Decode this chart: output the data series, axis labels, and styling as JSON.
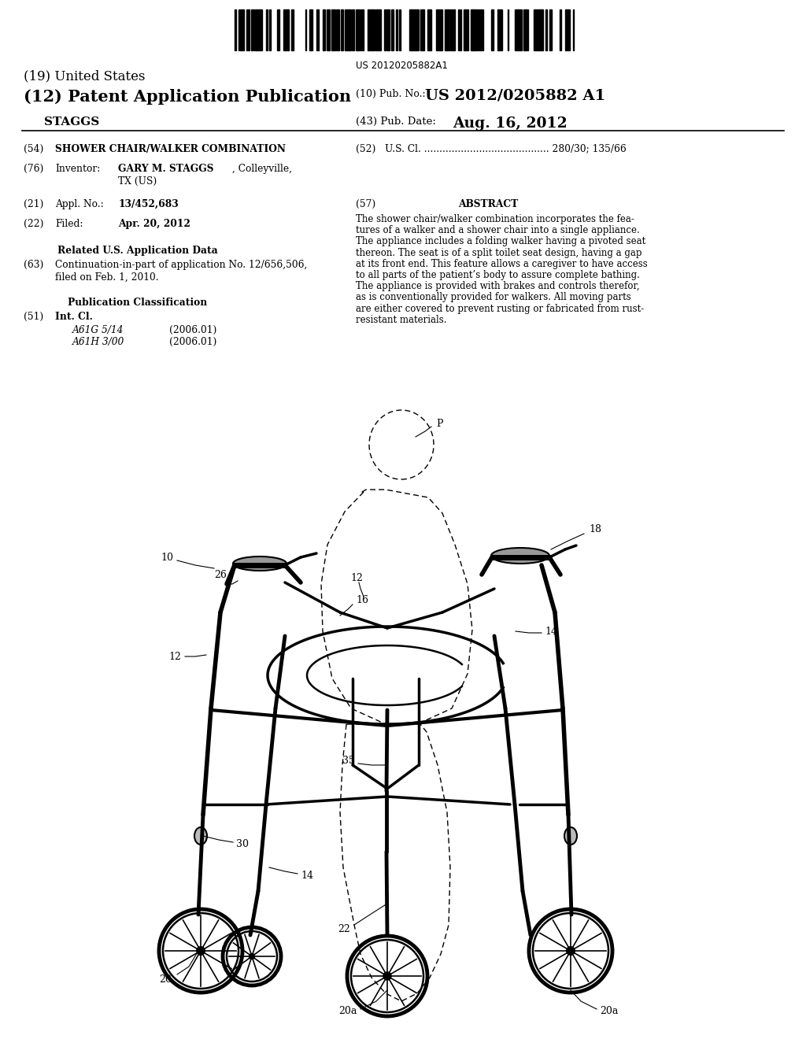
{
  "bg_color": "#ffffff",
  "barcode_text": "US 20120205882A1",
  "header_19": "(19) United States",
  "header_12": "(12) Patent Application Publication",
  "header_applicant": "STAGGS",
  "pub_no_label": "(10) Pub. No.:",
  "pub_no_value": "US 2012/0205882 A1",
  "pub_date_label": "(43) Pub. Date:",
  "pub_date_value": "Aug. 16, 2012",
  "s54_label": "(54)",
  "s54_title": "SHOWER CHAIR/WALKER COMBINATION",
  "s52_text": "(52)   U.S. Cl. ......................................... 280/30; 135/66",
  "s76_label": "(76)",
  "s76_key": "Inventor:",
  "s76_name": "GARY M. STAGGS",
  "s76_loc": ", Colleyville,",
  "s76_loc2": "TX (US)",
  "s21_label": "(21)",
  "s21_key": "Appl. No.:",
  "s21_val": "13/452,683",
  "s22_label": "(22)",
  "s22_key": "Filed:",
  "s22_val": "Apr. 20, 2012",
  "s57_label": "(57)",
  "s57_title": "ABSTRACT",
  "s57_lines": [
    "The shower chair/walker combination incorporates the fea-",
    "tures of a walker and a shower chair into a single appliance.",
    "The appliance includes a folding walker having a pivoted seat",
    "thereon. The seat is of a split toilet seat design, having a gap",
    "at its front end. This feature allows a caregiver to have access",
    "to all parts of the patient’s body to assure complete bathing.",
    "The appliance is provided with brakes and controls therefor,",
    "as is conventionally provided for walkers. All moving parts",
    "are either covered to prevent rusting or fabricated from rust-",
    "resistant materials."
  ],
  "related_title": "Related U.S. Application Data",
  "s63_label": "(63)",
  "s63_line1": "Continuation-in-part of application No. 12/656,506,",
  "s63_line2": "filed on Feb. 1, 2010.",
  "pubclass_title": "Publication Classification",
  "s51_label": "(51)",
  "s51_key": "Int. Cl.",
  "s51_rows": [
    [
      "A61G 5/14",
      "(2006.01)"
    ],
    [
      "A61H 3/00",
      "(2006.01)"
    ]
  ]
}
